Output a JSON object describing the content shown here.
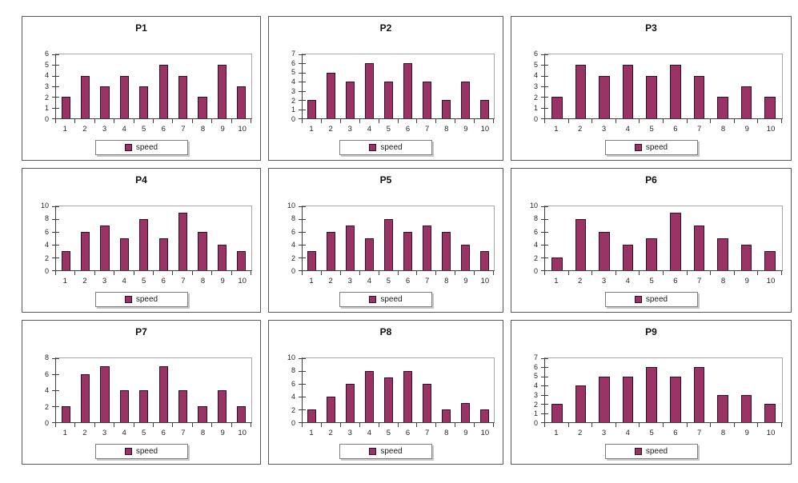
{
  "page": {
    "background": "#ffffff"
  },
  "colors": {
    "bar_fill": "#993366",
    "bar_border": "#331122",
    "axis_line": "#3f3f3f",
    "plot_border": "#a8a8a8",
    "panel_border": "#595959",
    "legend_border": "#7f7f7f",
    "legend_shadow": "#c6c6c6",
    "text": "#1a1a1a"
  },
  "legend_label": "speed",
  "chart_data": [
    {
      "type": "bar",
      "title": "P1",
      "categories": [
        "1",
        "2",
        "3",
        "4",
        "5",
        "6",
        "7",
        "8",
        "9",
        "10"
      ],
      "values": [
        2,
        4,
        3,
        4,
        3,
        5,
        4,
        2,
        5,
        3
      ],
      "xlabel": "",
      "ylabel": "",
      "ylim": [
        0,
        6
      ],
      "ytick_step": 1,
      "grid": "plot-frame-only",
      "legend": "speed",
      "legend_position": "bottom"
    },
    {
      "type": "bar",
      "title": "P2",
      "categories": [
        "1",
        "2",
        "3",
        "4",
        "5",
        "6",
        "7",
        "8",
        "9",
        "10"
      ],
      "values": [
        2,
        5,
        4,
        6,
        4,
        6,
        4,
        2,
        4,
        2
      ],
      "xlabel": "",
      "ylabel": "",
      "ylim": [
        0,
        7
      ],
      "ytick_step": 1,
      "grid": "plot-frame-only",
      "legend": "speed",
      "legend_position": "bottom"
    },
    {
      "type": "bar",
      "title": "P3",
      "categories": [
        "1",
        "2",
        "3",
        "4",
        "5",
        "6",
        "7",
        "8",
        "9",
        "10"
      ],
      "values": [
        2,
        5,
        4,
        5,
        4,
        5,
        4,
        2,
        3,
        2
      ],
      "xlabel": "",
      "ylabel": "",
      "ylim": [
        0,
        6
      ],
      "ytick_step": 1,
      "grid": "plot-frame-only",
      "legend": "speed",
      "legend_position": "bottom"
    },
    {
      "type": "bar",
      "title": "P4",
      "categories": [
        "1",
        "2",
        "3",
        "4",
        "5",
        "6",
        "7",
        "8",
        "9",
        "10"
      ],
      "values": [
        3,
        6,
        7,
        5,
        8,
        5,
        9,
        6,
        4,
        3
      ],
      "xlabel": "",
      "ylabel": "",
      "ylim": [
        0,
        10
      ],
      "ytick_step": 2,
      "grid": "plot-frame-only",
      "legend": "speed",
      "legend_position": "bottom"
    },
    {
      "type": "bar",
      "title": "P5",
      "categories": [
        "1",
        "2",
        "3",
        "4",
        "5",
        "6",
        "7",
        "8",
        "9",
        "10"
      ],
      "values": [
        3,
        6,
        7,
        5,
        8,
        6,
        7,
        6,
        4,
        3
      ],
      "xlabel": "",
      "ylabel": "",
      "ylim": [
        0,
        10
      ],
      "ytick_step": 2,
      "grid": "plot-frame-only",
      "legend": "speed",
      "legend_position": "bottom"
    },
    {
      "type": "bar",
      "title": "P6",
      "categories": [
        "1",
        "2",
        "3",
        "4",
        "5",
        "6",
        "7",
        "8",
        "9",
        "10"
      ],
      "values": [
        2,
        8,
        6,
        4,
        5,
        9,
        7,
        5,
        4,
        3
      ],
      "xlabel": "",
      "ylabel": "",
      "ylim": [
        0,
        10
      ],
      "ytick_step": 2,
      "grid": "plot-frame-only",
      "legend": "speed",
      "legend_position": "bottom"
    },
    {
      "type": "bar",
      "title": "P7",
      "categories": [
        "1",
        "2",
        "3",
        "4",
        "5",
        "6",
        "7",
        "8",
        "9",
        "10"
      ],
      "values": [
        2,
        6,
        7,
        4,
        4,
        7,
        4,
        2,
        4,
        2
      ],
      "xlabel": "",
      "ylabel": "",
      "ylim": [
        0,
        8
      ],
      "ytick_step": 2,
      "grid": "plot-frame-only",
      "legend": "speed",
      "legend_position": "bottom"
    },
    {
      "type": "bar",
      "title": "P8",
      "categories": [
        "1",
        "2",
        "3",
        "4",
        "5",
        "6",
        "7",
        "8",
        "9",
        "10"
      ],
      "values": [
        2,
        4,
        6,
        8,
        7,
        8,
        6,
        2,
        3,
        2
      ],
      "xlabel": "",
      "ylabel": "",
      "ylim": [
        0,
        10
      ],
      "ytick_step": 2,
      "grid": "plot-frame-only",
      "legend": "speed",
      "legend_position": "bottom"
    },
    {
      "type": "bar",
      "title": "P9",
      "categories": [
        "1",
        "2",
        "3",
        "4",
        "5",
        "6",
        "7",
        "8",
        "9",
        "10"
      ],
      "values": [
        2,
        4,
        5,
        5,
        6,
        5,
        6,
        3,
        3,
        2
      ],
      "xlabel": "",
      "ylabel": "",
      "ylim": [
        0,
        7
      ],
      "ytick_step": 1,
      "grid": "plot-frame-only",
      "legend": "speed",
      "legend_position": "bottom"
    }
  ]
}
